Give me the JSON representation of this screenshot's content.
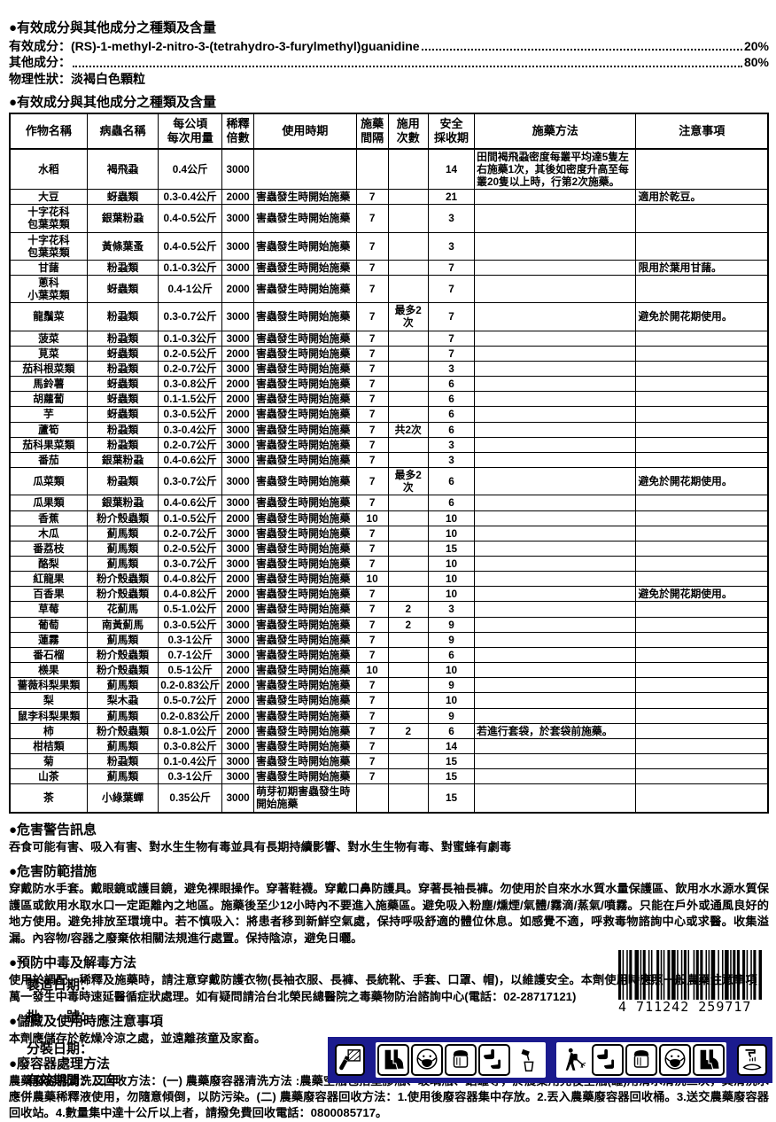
{
  "composition": {
    "title": "●有效成分與其他成分之種類及含量",
    "active_label": "有效成分：",
    "active_value": "(RS)-1-methyl-2-nitro-3-(tetrahydro-3-furylmethyl)guanidine",
    "active_percent": "20%",
    "other_label": "其他成分：",
    "other_value": "",
    "other_percent": "80%",
    "physical_label": "物理性狀：",
    "physical_value": "淡褐白色顆粒"
  },
  "usage_table": {
    "title": "●有效成分與其他成分之種類及含量",
    "headers": [
      "作物名稱",
      "病蟲名稱",
      "每公頃\n每次用量",
      "稀釋\n倍數",
      "使用時期",
      "施藥\n間隔",
      "施用\n次數",
      "安全\n採收期",
      "施藥方法",
      "注意事項"
    ],
    "rows": [
      [
        "水稻",
        "褐飛蝨",
        "0.4公斤",
        "3000",
        "",
        "",
        "",
        "14",
        "田間褐飛蝨密度每叢平均達5隻左右施藥1次，其後如密度升高至每叢20隻以上時，行第2次施藥。",
        ""
      ],
      [
        "大豆",
        "蚜蟲類",
        "0.3-0.4公斤",
        "2000",
        "害蟲發生時開始施藥",
        "7",
        "",
        "21",
        "",
        "適用於乾豆。"
      ],
      [
        "十字花科\n包葉菜類",
        "銀葉粉蝨",
        "0.4-0.5公斤",
        "3000",
        "害蟲發生時開始施藥",
        "7",
        "",
        "3",
        "",
        ""
      ],
      [
        "十字花科\n包葉菜類",
        "黃條葉蚤",
        "0.4-0.5公斤",
        "3000",
        "害蟲發生時開始施藥",
        "7",
        "",
        "3",
        "",
        ""
      ],
      [
        "甘藷",
        "粉蝨類",
        "0.1-0.3公斤",
        "3000",
        "害蟲發生時開始施藥",
        "7",
        "",
        "7",
        "",
        "限用於葉用甘藷。"
      ],
      [
        "蔥科\n小葉菜類",
        "蚜蟲類",
        "0.4-1公斤",
        "2000",
        "害蟲發生時開始施藥",
        "7",
        "",
        "7",
        "",
        ""
      ],
      [
        "龍鬚菜",
        "粉蝨類",
        "0.3-0.7公斤",
        "3000",
        "害蟲發生時開始施藥",
        "7",
        "最多2次",
        "7",
        "",
        "避免於開花期使用。"
      ],
      [
        "菠菜",
        "粉蝨類",
        "0.1-0.3公斤",
        "3000",
        "害蟲發生時開始施藥",
        "7",
        "",
        "7",
        "",
        ""
      ],
      [
        "莧菜",
        "蚜蟲類",
        "0.2-0.5公斤",
        "2000",
        "害蟲發生時開始施藥",
        "7",
        "",
        "7",
        "",
        ""
      ],
      [
        "茄科根菜類",
        "粉蝨類",
        "0.2-0.7公斤",
        "3000",
        "害蟲發生時開始施藥",
        "7",
        "",
        "3",
        "",
        ""
      ],
      [
        "馬鈴薯",
        "蚜蟲類",
        "0.3-0.8公斤",
        "2000",
        "害蟲發生時開始施藥",
        "7",
        "",
        "6",
        "",
        ""
      ],
      [
        "胡蘿蔔",
        "蚜蟲類",
        "0.1-1.5公斤",
        "2000",
        "害蟲發生時開始施藥",
        "7",
        "",
        "6",
        "",
        ""
      ],
      [
        "芋",
        "蚜蟲類",
        "0.3-0.5公斤",
        "2000",
        "害蟲發生時開始施藥",
        "7",
        "",
        "6",
        "",
        ""
      ],
      [
        "蘆筍",
        "粉蝨類",
        "0.3-0.4公斤",
        "3000",
        "害蟲發生時開始施藥",
        "7",
        "共2次",
        "6",
        "",
        ""
      ],
      [
        "茄科果菜類",
        "粉蝨類",
        "0.2-0.7公斤",
        "3000",
        "害蟲發生時開始施藥",
        "7",
        "",
        "3",
        "",
        ""
      ],
      [
        "番茄",
        "銀葉粉蝨",
        "0.4-0.6公斤",
        "3000",
        "害蟲發生時開始施藥",
        "7",
        "",
        "3",
        "",
        ""
      ],
      [
        "瓜菜類",
        "粉蝨類",
        "0.3-0.7公斤",
        "3000",
        "害蟲發生時開始施藥",
        "7",
        "最多2次",
        "6",
        "",
        "避免於開花期使用。"
      ],
      [
        "瓜果類",
        "銀葉粉蝨",
        "0.4-0.6公斤",
        "3000",
        "害蟲發生時開始施藥",
        "7",
        "",
        "6",
        "",
        ""
      ],
      [
        "香蕉",
        "粉介殼蟲類",
        "0.1-0.5公斤",
        "2000",
        "害蟲發生時開始施藥",
        "10",
        "",
        "10",
        "",
        ""
      ],
      [
        "木瓜",
        "薊馬類",
        "0.2-0.7公斤",
        "3000",
        "害蟲發生時開始施藥",
        "7",
        "",
        "10",
        "",
        ""
      ],
      [
        "番荔枝",
        "薊馬類",
        "0.2-0.5公斤",
        "3000",
        "害蟲發生時開始施藥",
        "7",
        "",
        "15",
        "",
        ""
      ],
      [
        "酪梨",
        "薊馬類",
        "0.3-0.7公斤",
        "3000",
        "害蟲發生時開始施藥",
        "7",
        "",
        "10",
        "",
        ""
      ],
      [
        "紅龍果",
        "粉介殼蟲類",
        "0.4-0.8公斤",
        "2000",
        "害蟲發生時開始施藥",
        "10",
        "",
        "10",
        "",
        ""
      ],
      [
        "百香果",
        "粉介殼蟲類",
        "0.4-0.8公斤",
        "2000",
        "害蟲發生時開始施藥",
        "7",
        "",
        "10",
        "",
        "避免於開花期使用。"
      ],
      [
        "草莓",
        "花薊馬",
        "0.5-1.0公斤",
        "2000",
        "害蟲發生時開始施藥",
        "7",
        "2",
        "3",
        "",
        ""
      ],
      [
        "葡萄",
        "南黃薊馬",
        "0.3-0.5公斤",
        "3000",
        "害蟲發生時開始施藥",
        "7",
        "2",
        "9",
        "",
        ""
      ],
      [
        "蓮霧",
        "薊馬類",
        "0.3-1公斤",
        "3000",
        "害蟲發生時開始施藥",
        "7",
        "",
        "9",
        "",
        ""
      ],
      [
        "番石榴",
        "粉介殼蟲類",
        "0.7-1公斤",
        "3000",
        "害蟲發生時開始施藥",
        "7",
        "",
        "6",
        "",
        ""
      ],
      [
        "檨果",
        "粉介殼蟲類",
        "0.5-1公斤",
        "2000",
        "害蟲發生時開始施藥",
        "10",
        "",
        "10",
        "",
        ""
      ],
      [
        "薔薇科梨果類",
        "薊馬類",
        "0.2-0.83公斤",
        "2000",
        "害蟲發生時開始施藥",
        "7",
        "",
        "9",
        "",
        ""
      ],
      [
        "梨",
        "梨木蝨",
        "0.5-0.7公斤",
        "2000",
        "害蟲發生時開始施藥",
        "7",
        "",
        "10",
        "",
        ""
      ],
      [
        "鼠李科梨果類",
        "薊馬類",
        "0.2-0.83公斤",
        "2000",
        "害蟲發生時開始施藥",
        "7",
        "",
        "9",
        "",
        ""
      ],
      [
        "柿",
        "粉介殼蟲類",
        "0.8-1.0公斤",
        "2000",
        "害蟲發生時開始施藥",
        "7",
        "2",
        "6",
        "若進行套袋，於套袋前施藥。",
        ""
      ],
      [
        "柑桔類",
        "薊馬類",
        "0.3-0.8公斤",
        "3000",
        "害蟲發生時開始施藥",
        "7",
        "",
        "14",
        "",
        ""
      ],
      [
        "菊",
        "粉蝨類",
        "0.1-0.4公斤",
        "3000",
        "害蟲發生時開始施藥",
        "7",
        "",
        "15",
        "",
        ""
      ],
      [
        "山茶",
        "薊馬類",
        "0.3-1公斤",
        "3000",
        "害蟲發生時開始施藥",
        "7",
        "",
        "15",
        "",
        ""
      ],
      [
        "茶",
        "小綠葉蟬",
        "0.35公斤",
        "3000",
        "萌芽初期害蟲發生時開始施藥",
        "",
        "",
        "15",
        "",
        ""
      ]
    ]
  },
  "sections": [
    {
      "title": "●危害警告訊息",
      "body": "吞食可能有害、吸入有害、對水生生物有毒並具有長期持續影響、對水生生物有毒、對蜜蜂有劇毒"
    },
    {
      "title": "●危害防範措施",
      "body": "穿戴防水手套。戴眼鏡或護目鏡，避免裸眼操作。穿著鞋襪。穿戴口鼻防護具。穿著長袖長褲。勿使用於自來水水質水量保護區、飲用水水源水質保護區或飲用水取水口一定距離內之地區。施藥後至少12小時內不要進入施藥區。避免吸入粉塵/燻煙/氣體/霧滴/蒸氣/噴霧。只能在戶外或通風良好的地方使用。避免排放至環境中。若不慎吸入：將患者移到新鮮空氣處，保持呼吸舒適的體位休息。如感覺不適，呼救毒物諮詢中心或求醫。收集溢漏。內容物/容器之廢棄依相關法規進行處置。保持陰涼，避免日曬。"
    },
    {
      "title": "●預防中毒及解毒方法",
      "body": "使用於調配、稀釋及施藥時，請注意穿戴防護衣物(長袖衣服、長褲、長統靴、手套、口罩、帽)，以維護安全。本劑使用時應照一般農藥注意事項，萬一發生中毒時速延醫循症狀處理。如有疑問請洽台北榮民總醫院之毒藥物防治諮詢中心(電話：02-28717121)"
    },
    {
      "title": "●儲藏及使用時應注意事項",
      "body": "本劑應儲存於乾燥冷涼之處，並遠離孩童及家畜。"
    },
    {
      "title": "●廢容器處理方法",
      "body": "農藥廢容器清洗及回收方法：(一) 農藥廢容器清洗方法 :農藥空瓶包括塑膠瓶、玻璃瓶、鋁罐等，於農藥用完後空瓶(罐)用清水清洗三次，其清洗水應併農藥稀釋液使用，勿隨意傾倒，以防污染。(二) 農藥廢容器回收方法：1.使用後廢容器集中存放。2.丟入農藥廢容器回收桶。3.送交農藥廢容器回收站。4.數量集中達十公斤以上者，請撥免費回收電話：0800085717。"
    }
  ],
  "footer": {
    "manufacture_date_label": "製造日期：",
    "batch_label": "批　　號：",
    "packaging_date_label": "分裝日期：",
    "validity_label": "有效期間：",
    "validity_value": "二年",
    "barcode_digits": "4 711242 259717"
  },
  "pictogram_band": {
    "band_color": "#1b1b8e",
    "icons": [
      "mixing-loading",
      "boots",
      "face-mask",
      "face-shield",
      "gloves",
      "pour-bucket",
      "knapsack-sprayer",
      "gloves",
      "face-shield",
      "face-mask",
      "boots",
      "wash-hands",
      "toxic-to-fish"
    ]
  }
}
